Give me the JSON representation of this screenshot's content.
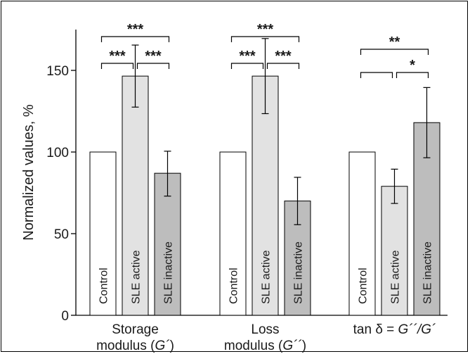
{
  "chart_data": {
    "type": "bar",
    "ylabel": "Normalized values, %",
    "ylim": [
      0,
      175
    ],
    "yticks": [
      0,
      50,
      100,
      150
    ],
    "grid": false,
    "legend": "none",
    "groups": [
      {
        "label_plain": "Storage",
        "label_line2_prefix": "modulus (",
        "label_line2_italic": "G´",
        "label_line2_suffix": ")",
        "bars": [
          {
            "label": "Control",
            "value": 100,
            "err_low": 100,
            "err_high": 100,
            "color": "#ffffff"
          },
          {
            "label": "SLE active",
            "value": 146.5,
            "err_low": 127.5,
            "err_high": 165.5,
            "color": "#e2e2e2"
          },
          {
            "label": "SLE inactive",
            "value": 87,
            "err_low": 73,
            "err_high": 100.5,
            "color": "#bdbdbd"
          }
        ],
        "significance": [
          {
            "from": 0,
            "to": 2,
            "text": "***",
            "level": 2
          },
          {
            "from": 0,
            "to": 1,
            "text": "***",
            "level": 1
          },
          {
            "from": 1,
            "to": 2,
            "text": "***",
            "level": 1
          }
        ]
      },
      {
        "label_plain": "Loss",
        "label_line2_prefix": "modulus (",
        "label_line2_italic": "G´´",
        "label_line2_suffix": ")",
        "bars": [
          {
            "label": "Control",
            "value": 100,
            "err_low": 100,
            "err_high": 100,
            "color": "#ffffff"
          },
          {
            "label": "SLE active",
            "value": 146.5,
            "err_low": 123.5,
            "err_high": 169.5,
            "color": "#e2e2e2"
          },
          {
            "label": "SLE inactive",
            "value": 70,
            "err_low": 55.5,
            "err_high": 84.5,
            "color": "#bdbdbd"
          }
        ],
        "significance": [
          {
            "from": 0,
            "to": 2,
            "text": "***",
            "level": 2
          },
          {
            "from": 0,
            "to": 1,
            "text": "***",
            "level": 1
          },
          {
            "from": 1,
            "to": 2,
            "text": "***",
            "level": 1
          }
        ]
      },
      {
        "label_plain": "tan δ = ",
        "label_italic": "G´´/G´",
        "bars": [
          {
            "label": "Control",
            "value": 100,
            "err_low": 100,
            "err_high": 100,
            "color": "#ffffff"
          },
          {
            "label": "SLE active",
            "value": 79,
            "err_low": 68.5,
            "err_high": 89.5,
            "color": "#e2e2e2"
          },
          {
            "label": "SLE inactive",
            "value": 118,
            "err_low": 96.5,
            "err_high": 139.5,
            "color": "#bdbdbd"
          }
        ],
        "significance": [
          {
            "from": 0,
            "to": 2,
            "text": "**",
            "level": 2
          },
          {
            "from": 0,
            "to": 1,
            "text": "",
            "level": 1
          },
          {
            "from": 1,
            "to": 2,
            "text": "*",
            "level": 1
          }
        ]
      }
    ]
  }
}
